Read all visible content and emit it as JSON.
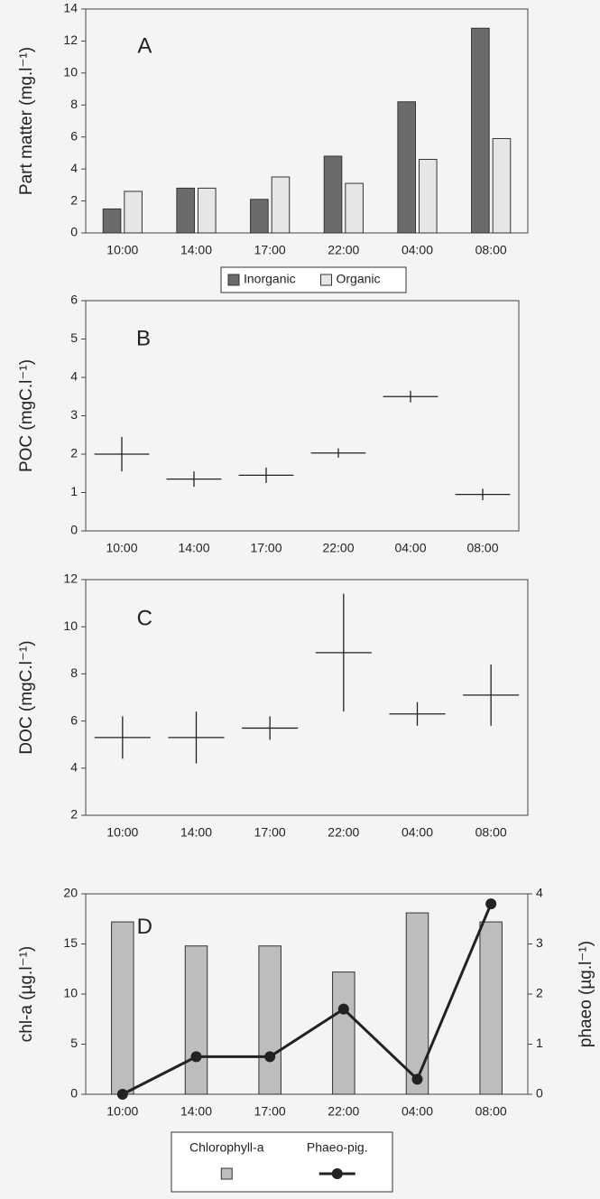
{
  "chart_data": [
    {
      "type": "bar",
      "panel": "A",
      "y_label": "Part matter (mg.l⁻¹)",
      "categories": [
        "10:00",
        "14:00",
        "17:00",
        "22:00",
        "04:00",
        "08:00"
      ],
      "series": [
        {
          "name": "Inorganic",
          "color": "#6b6b6b",
          "values": [
            1.5,
            2.8,
            2.1,
            4.8,
            8.2,
            12.8
          ]
        },
        {
          "name": "Organic",
          "color": "#e6e6e6",
          "values": [
            2.6,
            2.8,
            3.5,
            3.1,
            4.6,
            5.9
          ]
        }
      ],
      "ylim": [
        0,
        14
      ],
      "yticks": [
        0,
        2,
        4,
        6,
        8,
        10,
        12,
        14
      ]
    },
    {
      "type": "errorbar",
      "panel": "B",
      "y_label": "POC (mgC.l⁻¹)",
      "categories": [
        "10:00",
        "14:00",
        "17:00",
        "22:00",
        "04:00",
        "08:00"
      ],
      "values": [
        2.0,
        1.35,
        1.45,
        2.03,
        3.5,
        0.95
      ],
      "errors": [
        0.45,
        0.2,
        0.2,
        0.12,
        0.15,
        0.15
      ],
      "color": "#222222",
      "ylim": [
        0,
        6
      ],
      "yticks": [
        0,
        1,
        2,
        3,
        4,
        5,
        6
      ]
    },
    {
      "type": "errorbar",
      "panel": "C",
      "y_label": "DOC (mgC.l⁻¹)",
      "categories": [
        "10:00",
        "14:00",
        "17:00",
        "22:00",
        "04:00",
        "08:00"
      ],
      "values": [
        5.3,
        5.3,
        5.7,
        8.9,
        6.3,
        7.1
      ],
      "errors": [
        0.9,
        1.1,
        0.5,
        2.5,
        0.5,
        1.3
      ],
      "color": "#222222",
      "ylim": [
        2,
        12
      ],
      "yticks": [
        2,
        4,
        6,
        8,
        10,
        12
      ]
    },
    {
      "type": "bar",
      "panel": "D",
      "y_label": "chl-a (µg.l⁻¹)",
      "y2_label": "phaeo (µg.l⁻¹)",
      "categories": [
        "10:00",
        "14:00",
        "17:00",
        "22:00",
        "04:00",
        "08:00"
      ],
      "series": [
        {
          "name": "Chlorophyll-a",
          "color": "#bdbdbd",
          "values": [
            17.2,
            14.8,
            14.8,
            12.2,
            18.1,
            17.2
          ]
        },
        {
          "name": "Phaeo-pig.",
          "color": "#222222",
          "axis": "y2",
          "values": [
            0,
            0.75,
            0.75,
            1.7,
            0.3,
            3.8
          ]
        }
      ],
      "ylim": [
        0,
        20
      ],
      "yticks": [
        0,
        5,
        10,
        15,
        20
      ],
      "y2lim": [
        0,
        4
      ],
      "y2ticks": [
        0,
        1,
        2,
        3,
        4
      ]
    }
  ]
}
